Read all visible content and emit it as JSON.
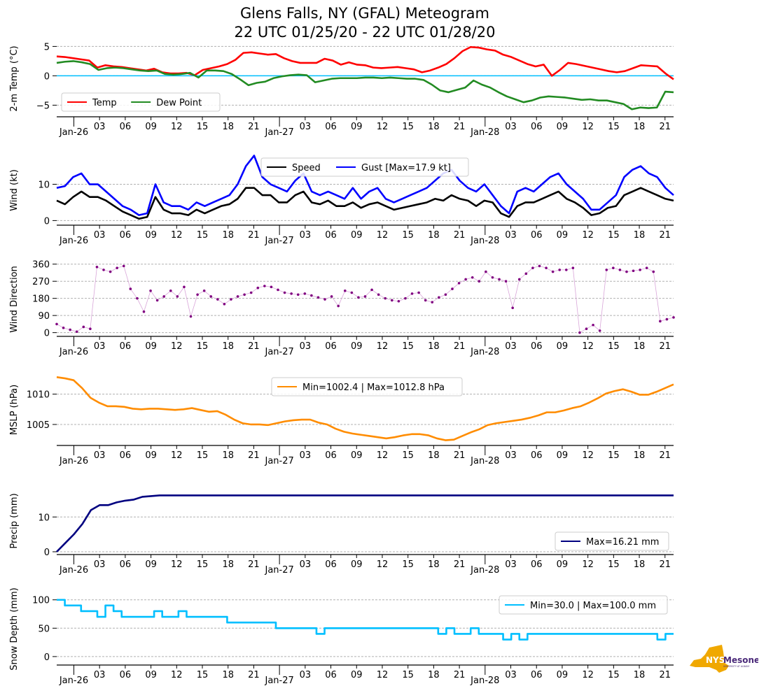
{
  "title": {
    "line1": "Glens Falls, NY (GFAL) Meteogram",
    "line2": "22 UTC 01/25/20 - 22 UTC 01/28/20"
  },
  "logo": {
    "text_main": "NYS",
    "text_brand": "Mesonet",
    "text_sub": "UNIVERSITY AT ALBANY",
    "color_state": "#f0a800",
    "color_brand": "#4b2a7a"
  },
  "chart_data": [
    {
      "type": "line",
      "id": "temp",
      "ylabel": "2-m Temp ($^\\circ$C)",
      "ylabel_display": "2-m Temp (°C)",
      "ylim": [
        -6.5,
        6
      ],
      "yticks": [
        -5,
        0,
        5
      ],
      "ytick_labels": [
        "−5",
        "0",
        "5"
      ],
      "grid": true,
      "reference_line": {
        "value": 0,
        "color": "#00bfff"
      },
      "legend": {
        "placement": "lower-left",
        "ncol": 2
      },
      "x_start": "2020-01-25T22:00Z",
      "x_hours": 72,
      "xtick_labels": [
        "Jan-26",
        "03",
        "06",
        "09",
        "12",
        "15",
        "18",
        "21",
        "Jan-27",
        "03",
        "06",
        "09",
        "12",
        "15",
        "18",
        "21",
        "Jan-28",
        "03",
        "06",
        "09",
        "12",
        "15",
        "18",
        "21"
      ],
      "series": [
        {
          "name": "Temp",
          "color": "#ff0000",
          "values": [
            3.3,
            3.2,
            3.0,
            2.8,
            2.6,
            1.4,
            1.8,
            1.6,
            1.5,
            1.3,
            1.1,
            0.9,
            1.2,
            0.6,
            0.4,
            0.4,
            0.5,
            0.1,
            1.0,
            1.3,
            1.6,
            2.0,
            2.7,
            3.9,
            4.0,
            3.8,
            3.6,
            3.7,
            3.0,
            2.5,
            2.2,
            2.2,
            2.2,
            2.9,
            2.6,
            1.9,
            2.3,
            1.9,
            1.8,
            1.4,
            1.3,
            1.4,
            1.5,
            1.3,
            1.1,
            0.6,
            0.9,
            1.4,
            2.0,
            3.0,
            4.2,
            4.9,
            4.8,
            4.5,
            4.3,
            3.6,
            3.2,
            2.6,
            2.0,
            1.6,
            1.9,
            0.0,
            1.0,
            2.2,
            2.0,
            1.7,
            1.4,
            1.1,
            0.8,
            0.6,
            0.8,
            1.3,
            1.8,
            1.7,
            1.6,
            0.4,
            -0.6
          ]
        },
        {
          "name": "Dew Point",
          "color": "#228b22",
          "values": [
            2.2,
            2.4,
            2.5,
            2.3,
            2.0,
            1.0,
            1.3,
            1.4,
            1.3,
            1.1,
            0.9,
            0.8,
            0.9,
            0.3,
            0.2,
            0.3,
            0.5,
            -0.3,
            0.9,
            0.9,
            0.8,
            0.3,
            -0.6,
            -1.6,
            -1.2,
            -1.0,
            -0.4,
            -0.1,
            0.1,
            0.2,
            0.1,
            -1.1,
            -0.8,
            -0.5,
            -0.4,
            -0.4,
            -0.4,
            -0.3,
            -0.3,
            -0.4,
            -0.3,
            -0.4,
            -0.5,
            -0.5,
            -0.7,
            -1.5,
            -2.5,
            -2.8,
            -2.4,
            -2.0,
            -0.8,
            -1.5,
            -2.0,
            -2.8,
            -3.5,
            -4.0,
            -4.5,
            -4.2,
            -3.7,
            -3.5,
            -3.6,
            -3.7,
            -3.9,
            -4.1,
            -4.0,
            -4.2,
            -4.2,
            -4.5,
            -4.8,
            -5.7,
            -5.4,
            -5.5,
            -5.4,
            -2.7,
            -2.8
          ]
        }
      ]
    },
    {
      "type": "line",
      "id": "wind",
      "ylabel": "Wind (kt)",
      "ylim": [
        -0.5,
        18
      ],
      "yticks": [
        0,
        10
      ],
      "ytick_labels": [
        "0",
        "10"
      ],
      "grid": true,
      "legend": {
        "placement": "upper-center",
        "ncol": 2
      },
      "xtick_labels": [
        "Jan-26",
        "03",
        "06",
        "09",
        "12",
        "15",
        "18",
        "21",
        "Jan-27",
        "03",
        "06",
        "09",
        "12",
        "15",
        "18",
        "21",
        "Jan-28",
        "03",
        "06",
        "09",
        "12",
        "15",
        "18",
        "21"
      ],
      "series": [
        {
          "name": "Speed",
          "color": "#000000",
          "values": [
            5.5,
            4.5,
            6.5,
            8,
            6.5,
            6.5,
            5.5,
            4,
            2.5,
            1.5,
            0.5,
            1,
            6.5,
            3,
            2,
            2,
            1.5,
            3,
            2,
            3,
            4,
            4.5,
            6,
            9,
            9,
            7,
            7,
            5,
            5,
            7,
            8,
            5,
            4.5,
            5.5,
            4,
            4,
            5,
            3.5,
            4.5,
            5,
            4,
            3,
            3.5,
            4,
            4.5,
            5,
            6,
            5.5,
            7,
            6,
            5.5,
            4,
            5.5,
            5,
            2,
            1,
            4,
            5,
            5,
            6,
            7,
            8,
            6,
            5,
            3.5,
            1.5,
            2,
            3.5,
            4,
            7,
            8,
            9,
            8,
            7,
            6,
            5.5
          ]
        },
        {
          "name": "Gust [Max=17.9 kt]",
          "color": "#0000ff",
          "values": [
            9,
            9.5,
            12,
            13,
            10,
            10,
            8,
            6,
            4,
            3,
            1.5,
            2,
            10,
            5,
            4,
            4,
            3,
            5,
            4,
            5,
            6,
            7,
            10,
            15,
            17.9,
            12,
            10,
            9,
            8,
            11,
            13,
            8,
            7,
            8,
            7,
            6,
            9,
            6,
            8,
            9,
            6,
            5,
            6,
            7,
            8,
            9,
            11,
            13,
            14,
            11,
            9,
            8,
            10,
            7,
            4,
            2,
            8,
            9,
            8,
            10,
            12,
            13,
            10,
            8,
            6,
            3,
            3,
            5,
            7,
            12,
            14,
            15,
            13,
            12,
            9,
            7
          ]
        }
      ]
    },
    {
      "type": "scatter",
      "id": "wdir",
      "ylabel": "Wind Direction",
      "ylim": [
        -5,
        370
      ],
      "yticks": [
        0,
        90,
        180,
        270,
        360
      ],
      "ytick_labels": [
        "0",
        "90",
        "180",
        "270",
        "360"
      ],
      "grid": true,
      "color": "#800080",
      "xtick_labels": [
        "Jan-26",
        "03",
        "06",
        "09",
        "12",
        "15",
        "18",
        "21",
        "Jan-27",
        "03",
        "06",
        "09",
        "12",
        "15",
        "18",
        "21",
        "Jan-28",
        "03",
        "06",
        "09",
        "12",
        "15",
        "18",
        "21"
      ],
      "series": [
        {
          "name": "Wind Direction",
          "color": "#800080",
          "values": [
            45,
            25,
            15,
            5,
            30,
            20,
            345,
            330,
            320,
            340,
            350,
            230,
            180,
            110,
            220,
            170,
            190,
            220,
            190,
            240,
            85,
            200,
            220,
            190,
            175,
            150,
            175,
            190,
            200,
            210,
            235,
            245,
            240,
            225,
            210,
            205,
            200,
            205,
            195,
            185,
            175,
            190,
            140,
            220,
            210,
            185,
            190,
            225,
            200,
            180,
            170,
            165,
            180,
            205,
            210,
            170,
            160,
            185,
            200,
            230,
            260,
            280,
            290,
            270,
            320,
            290,
            280,
            270,
            130,
            280,
            310,
            340,
            350,
            340,
            320,
            330,
            330,
            340,
            0,
            20,
            40,
            10,
            330,
            340,
            330,
            320,
            325,
            330,
            340,
            320,
            60,
            70,
            80
          ]
        }
      ]
    },
    {
      "type": "line",
      "id": "mslp",
      "ylabel": "MSLP (hPa)",
      "ylim": [
        1002.0,
        1013.3
      ],
      "yticks": [
        1005,
        1010
      ],
      "ytick_labels": [
        "1005",
        "1010"
      ],
      "grid": true,
      "legend": {
        "placement": "upper-center",
        "ncol": 1
      },
      "xtick_labels": [
        "Jan-26",
        "03",
        "06",
        "09",
        "12",
        "15",
        "18",
        "21",
        "Jan-27",
        "03",
        "06",
        "09",
        "12",
        "15",
        "18",
        "21",
        "Jan-28",
        "03",
        "06",
        "09",
        "12",
        "15",
        "18",
        "21"
      ],
      "series": [
        {
          "name": "Min=1002.4 | Max=1012.8 hPa",
          "color": "#ff8c00",
          "values": [
            1012.8,
            1012.6,
            1012.3,
            1011.0,
            1009.4,
            1008.6,
            1008.0,
            1008.0,
            1007.9,
            1007.6,
            1007.5,
            1007.6,
            1007.6,
            1007.5,
            1007.4,
            1007.5,
            1007.7,
            1007.4,
            1007.1,
            1007.2,
            1006.6,
            1005.8,
            1005.2,
            1005.0,
            1005.0,
            1004.9,
            1005.2,
            1005.5,
            1005.7,
            1005.8,
            1005.8,
            1005.3,
            1005.0,
            1004.3,
            1003.8,
            1003.5,
            1003.3,
            1003.1,
            1002.9,
            1002.7,
            1002.9,
            1003.2,
            1003.4,
            1003.4,
            1003.2,
            1002.7,
            1002.4,
            1002.5,
            1003.1,
            1003.7,
            1004.2,
            1004.9,
            1005.2,
            1005.4,
            1005.6,
            1005.8,
            1006.1,
            1006.5,
            1007.0,
            1007.0,
            1007.3,
            1007.7,
            1008.0,
            1008.6,
            1009.3,
            1010.1,
            1010.5,
            1010.8,
            1010.4,
            1009.9,
            1009.9,
            1010.4,
            1011.0,
            1011.6
          ]
        }
      ]
    },
    {
      "type": "line",
      "id": "precip",
      "ylabel": "Precip (mm)",
      "ylim": [
        0,
        18.5
      ],
      "yticks": [
        0,
        10
      ],
      "ytick_labels": [
        "0",
        "10"
      ],
      "grid": true,
      "legend": {
        "placement": "lower-right",
        "ncol": 1
      },
      "xtick_labels": [
        "Jan-26",
        "03",
        "06",
        "09",
        "12",
        "15",
        "18",
        "21",
        "Jan-27",
        "03",
        "06",
        "09",
        "12",
        "15",
        "18",
        "21",
        "Jan-28",
        "03",
        "06",
        "09",
        "12",
        "15",
        "18",
        "21"
      ],
      "series": [
        {
          "name": "Max=16.21 mm",
          "color": "#000080",
          "values": [
            0,
            2.5,
            5,
            8,
            12,
            13.4,
            13.4,
            14.2,
            14.7,
            15.0,
            15.8,
            16.0,
            16.2,
            16.2,
            16.2,
            16.2,
            16.2,
            16.2,
            16.2,
            16.2,
            16.2,
            16.2,
            16.2,
            16.2,
            16.2,
            16.2,
            16.2,
            16.2,
            16.2,
            16.2,
            16.2,
            16.2,
            16.2,
            16.2,
            16.2,
            16.2,
            16.2,
            16.2,
            16.2,
            16.2,
            16.2,
            16.2,
            16.2,
            16.2,
            16.2,
            16.2,
            16.2,
            16.2,
            16.2,
            16.2,
            16.2,
            16.2,
            16.2,
            16.2,
            16.2,
            16.2,
            16.2,
            16.2,
            16.2,
            16.2,
            16.2,
            16.2,
            16.2,
            16.2,
            16.2,
            16.2,
            16.2,
            16.2,
            16.2,
            16.21,
            16.21,
            16.21,
            16.21
          ]
        }
      ]
    },
    {
      "type": "line",
      "id": "snow",
      "ylabel": "Snow Depth (mm)",
      "ylim": [
        -10,
        112
      ],
      "yticks": [
        0,
        50,
        100
      ],
      "ytick_labels": [
        "0",
        "50",
        "100"
      ],
      "grid": true,
      "legend": {
        "placement": "upper-right",
        "ncol": 1
      },
      "xtick_labels": [
        "Jan-26",
        "03",
        "06",
        "09",
        "12",
        "15",
        "18",
        "21",
        "Jan-27",
        "03",
        "06",
        "09",
        "12",
        "15",
        "18",
        "21",
        "Jan-28",
        "03",
        "06",
        "09",
        "12",
        "15",
        "18",
        "21"
      ],
      "series": [
        {
          "name": "Min=30.0 | Max=100.0 mm",
          "color": "#00bfff",
          "values": [
            100,
            90,
            90,
            80,
            80,
            70,
            90,
            80,
            70,
            70,
            70,
            70,
            80,
            70,
            70,
            80,
            70,
            70,
            70,
            70,
            70,
            60,
            60,
            60,
            60,
            60,
            60,
            50,
            50,
            50,
            50,
            50,
            40,
            50,
            50,
            50,
            50,
            50,
            50,
            50,
            50,
            50,
            50,
            50,
            50,
            50,
            50,
            40,
            50,
            40,
            40,
            50,
            40,
            40,
            40,
            30,
            40,
            30,
            40,
            40,
            40,
            40,
            40,
            40,
            40,
            40,
            40,
            40,
            40,
            40,
            40,
            40,
            40,
            40,
            30,
            40,
            40
          ]
        }
      ]
    }
  ]
}
